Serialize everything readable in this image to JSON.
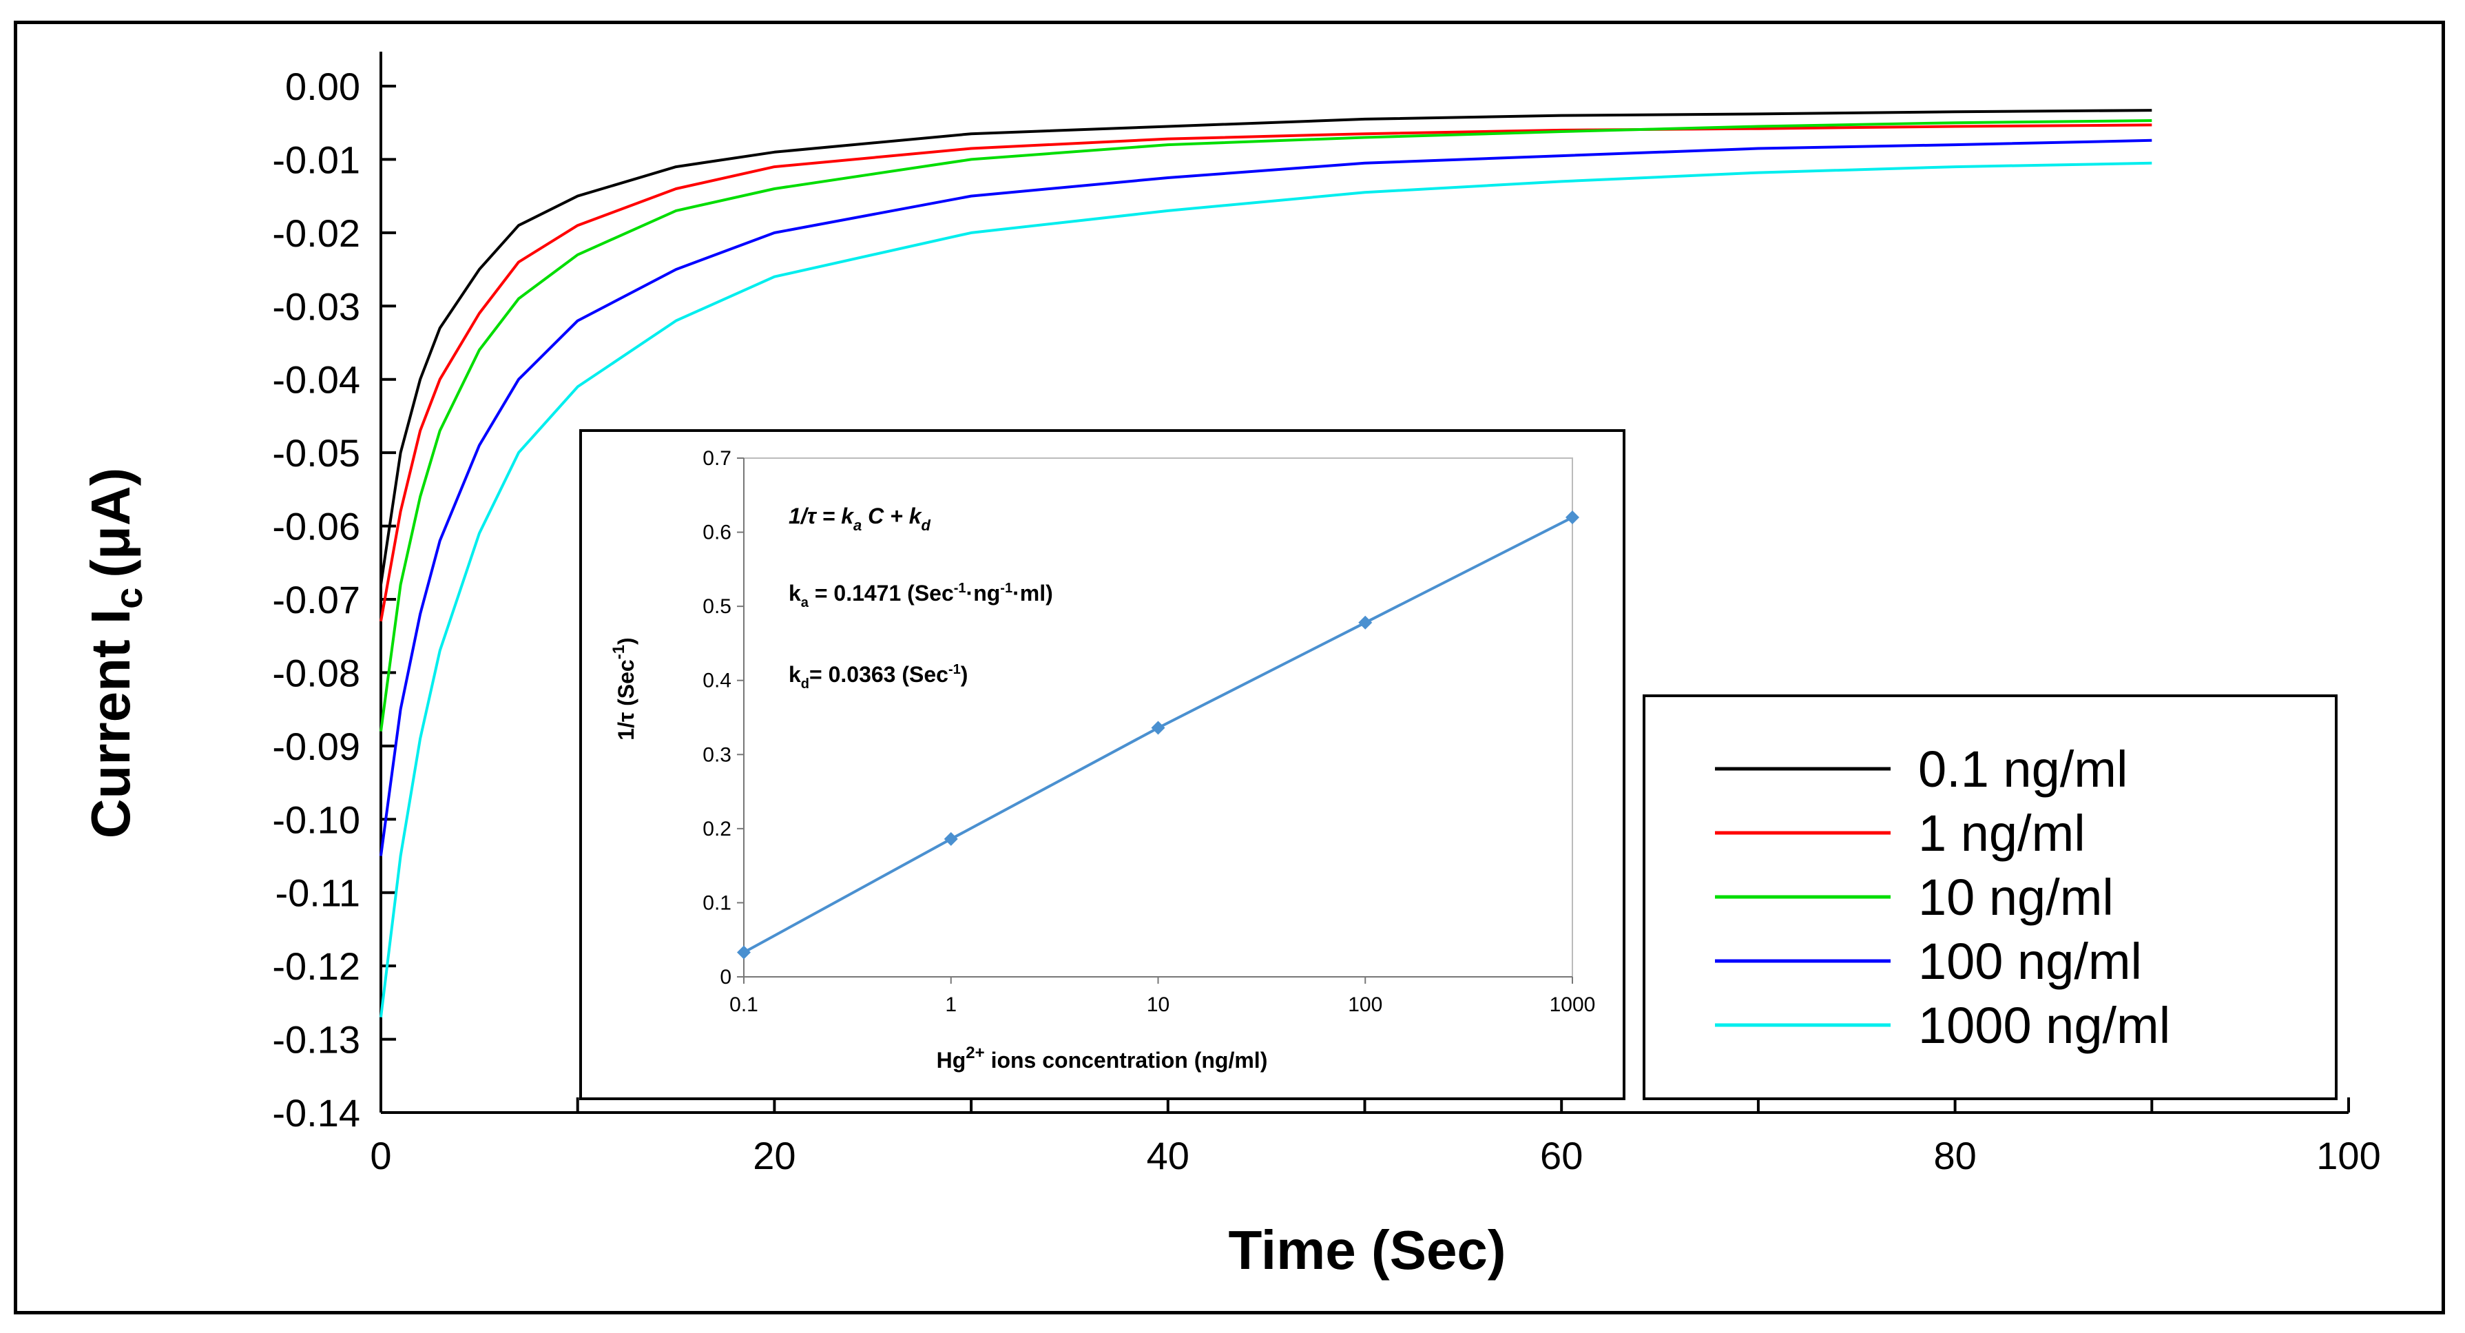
{
  "chart_data": [
    {
      "type": "line",
      "title": "",
      "xlabel": "Time (Sec)",
      "ylabel_main": "Current I",
      "ylabel_sub": "c",
      "ylabel_unit": "(μA)",
      "xlim": [
        0,
        100
      ],
      "ylim": [
        -0.14,
        0.0
      ],
      "xticks": [
        0,
        20,
        40,
        60,
        80,
        100
      ],
      "xtick_labels": [
        "0",
        "20",
        "40",
        "60",
        "80",
        "100"
      ],
      "yticks": [
        0.0,
        -0.01,
        -0.02,
        -0.03,
        -0.04,
        -0.05,
        -0.06,
        -0.07,
        -0.08,
        -0.09,
        -0.1,
        -0.11,
        -0.12,
        -0.13,
        -0.14
      ],
      "ytick_labels": [
        "0.00",
        "-0.01",
        "-0.02",
        "-0.03",
        "-0.04",
        "-0.05",
        "-0.06",
        "-0.07",
        "-0.08",
        "-0.09",
        "-0.10",
        "-0.11",
        "-0.12",
        "-0.13",
        "-0.14"
      ],
      "legend_position": "right",
      "series": [
        {
          "name": "0.1 ng/ml",
          "color": "#000000",
          "x": [
            0,
            1,
            2,
            3,
            5,
            7,
            10,
            15,
            20,
            30,
            40,
            50,
            60,
            70,
            80,
            90
          ],
          "y": [
            -0.068,
            -0.05,
            -0.04,
            -0.033,
            -0.025,
            -0.019,
            -0.015,
            -0.011,
            -0.009,
            -0.0065,
            -0.0055,
            -0.0045,
            -0.004,
            -0.0038,
            -0.0035,
            -0.0033
          ]
        },
        {
          "name": "1 ng/ml",
          "color": "#ff0000",
          "x": [
            0,
            1,
            2,
            3,
            5,
            7,
            10,
            15,
            20,
            30,
            40,
            50,
            60,
            70,
            80,
            90
          ],
          "y": [
            -0.073,
            -0.058,
            -0.047,
            -0.04,
            -0.031,
            -0.024,
            -0.019,
            -0.014,
            -0.011,
            -0.0085,
            -0.0072,
            -0.0065,
            -0.006,
            -0.0058,
            -0.0055,
            -0.0053
          ]
        },
        {
          "name": "10 ng/ml",
          "color": "#00dd00",
          "x": [
            0,
            1,
            2,
            3,
            5,
            7,
            10,
            15,
            20,
            30,
            40,
            50,
            60,
            70,
            80,
            90
          ],
          "y": [
            -0.088,
            -0.068,
            -0.056,
            -0.047,
            -0.036,
            -0.029,
            -0.023,
            -0.017,
            -0.014,
            -0.01,
            -0.008,
            -0.007,
            -0.0062,
            -0.0055,
            -0.005,
            -0.0047
          ]
        },
        {
          "name": "100 ng/ml",
          "color": "#0000ff",
          "x": [
            0,
            1,
            2,
            3,
            5,
            7,
            10,
            15,
            20,
            30,
            40,
            50,
            60,
            70,
            80,
            90
          ],
          "y": [
            -0.105,
            -0.085,
            -0.072,
            -0.062,
            -0.049,
            -0.04,
            -0.032,
            -0.025,
            -0.02,
            -0.015,
            -0.0125,
            -0.0105,
            -0.0095,
            -0.0085,
            -0.008,
            -0.0074
          ]
        },
        {
          "name": "1000 ng/ml",
          "color": "#00eeee",
          "x": [
            0,
            1,
            2,
            3,
            5,
            7,
            10,
            15,
            20,
            30,
            40,
            50,
            60,
            70,
            80,
            90
          ],
          "y": [
            -0.127,
            -0.105,
            -0.089,
            -0.077,
            -0.061,
            -0.05,
            -0.041,
            -0.032,
            -0.026,
            -0.02,
            -0.017,
            -0.0145,
            -0.013,
            -0.0118,
            -0.011,
            -0.0105
          ]
        }
      ]
    },
    {
      "type": "line",
      "title": "",
      "xlabel_prefix": "Hg",
      "xlabel_sup": "2+",
      "xlabel_suffix": " ions concentration (ng/ml)",
      "ylabel_prefix": "1/τ  (Sec",
      "ylabel_sup": "-1",
      "ylabel_suffix": ")",
      "xscale": "log",
      "xlim": [
        0.1,
        1000
      ],
      "ylim": [
        0,
        0.7
      ],
      "xticks": [
        0.1,
        1,
        10,
        100,
        1000
      ],
      "xtick_labels": [
        "0.1",
        "1",
        "10",
        "100",
        "1000"
      ],
      "yticks": [
        0,
        0.1,
        0.2,
        0.3,
        0.4,
        0.5,
        0.6,
        0.7
      ],
      "ytick_labels": [
        "0",
        "0.1",
        "0.2",
        "0.3",
        "0.4",
        "0.5",
        "0.6",
        "0.7"
      ],
      "series": [
        {
          "name": "1/τ",
          "color": "#4a90d0",
          "x": [
            0.1,
            1,
            10,
            100,
            1000
          ],
          "y": [
            0.033,
            0.186,
            0.336,
            0.478,
            0.62
          ]
        }
      ],
      "annotations": {
        "equation": "1/τ = k",
        "equation_sub1": "a",
        "equation_mid": " C + k",
        "equation_sub2": "d",
        "ka_prefix": "k",
        "ka_sub": "a",
        "ka_value": " = 0.1471 (Sec",
        "ka_sup1": "-1",
        "ka_mid": "·ng",
        "ka_sup2": "-1",
        "ka_suffix": "·ml)",
        "kd_prefix": "k",
        "kd_sub": "d",
        "kd_value": "= 0.0363 (Sec",
        "kd_sup": "-1",
        "kd_suffix": ")"
      }
    }
  ]
}
